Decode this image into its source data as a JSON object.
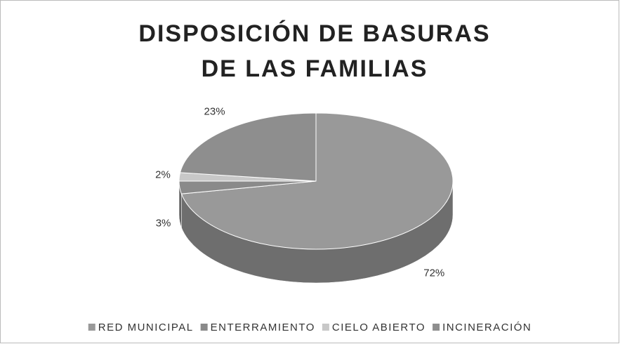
{
  "chart_data": {
    "type": "pie3d",
    "title": [
      "DISPOSICIÓN DE BASURAS",
      "DE LAS FAMILIAS"
    ],
    "categories": [
      "RED MUNICIPAL",
      "ENTERRAMIENTO",
      "CIELO ABIERTO",
      "INCINERACIÓN"
    ],
    "values": [
      72,
      3,
      2,
      23
    ],
    "value_labels": [
      "72%",
      "3%",
      "2%",
      "23%"
    ],
    "colors": [
      "#999999",
      "#8a8a8a",
      "#c8c8c8",
      "#8e8e8e"
    ],
    "legend": "bottom"
  }
}
